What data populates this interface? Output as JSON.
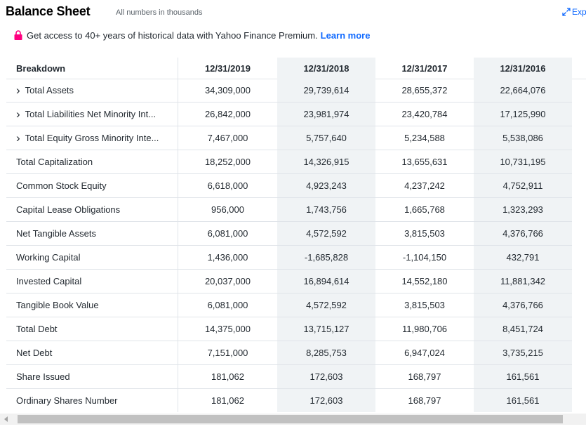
{
  "header": {
    "title": "Balance Sheet",
    "subtitle": "All numbers in thousands",
    "expand_label": "Exp"
  },
  "premium": {
    "text": "Get access to 40+ years of historical data with Yahoo Finance Premium.",
    "link_label": "Learn more"
  },
  "table": {
    "columns": [
      "Breakdown",
      "12/31/2019",
      "12/31/2018",
      "12/31/2017",
      "12/31/2016"
    ],
    "rows": [
      {
        "label": "Total Assets",
        "expandable": true,
        "values": [
          "34,309,000",
          "29,739,614",
          "28,655,372",
          "22,664,076"
        ]
      },
      {
        "label": "Total Liabilities Net Minority Int...",
        "expandable": true,
        "values": [
          "26,842,000",
          "23,981,974",
          "23,420,784",
          "17,125,990"
        ]
      },
      {
        "label": "Total Equity Gross Minority Inte...",
        "expandable": true,
        "values": [
          "7,467,000",
          "5,757,640",
          "5,234,588",
          "5,538,086"
        ]
      },
      {
        "label": "Total Capitalization",
        "expandable": false,
        "values": [
          "18,252,000",
          "14,326,915",
          "13,655,631",
          "10,731,195"
        ]
      },
      {
        "label": "Common Stock Equity",
        "expandable": false,
        "values": [
          "6,618,000",
          "4,923,243",
          "4,237,242",
          "4,752,911"
        ]
      },
      {
        "label": "Capital Lease Obligations",
        "expandable": false,
        "values": [
          "956,000",
          "1,743,756",
          "1,665,768",
          "1,323,293"
        ]
      },
      {
        "label": "Net Tangible Assets",
        "expandable": false,
        "values": [
          "6,081,000",
          "4,572,592",
          "3,815,503",
          "4,376,766"
        ]
      },
      {
        "label": "Working Capital",
        "expandable": false,
        "values": [
          "1,436,000",
          "-1,685,828",
          "-1,104,150",
          "432,791"
        ]
      },
      {
        "label": "Invested Capital",
        "expandable": false,
        "values": [
          "20,037,000",
          "16,894,614",
          "14,552,180",
          "11,881,342"
        ]
      },
      {
        "label": "Tangible Book Value",
        "expandable": false,
        "values": [
          "6,081,000",
          "4,572,592",
          "3,815,503",
          "4,376,766"
        ]
      },
      {
        "label": "Total Debt",
        "expandable": false,
        "values": [
          "14,375,000",
          "13,715,127",
          "11,980,706",
          "8,451,724"
        ]
      },
      {
        "label": "Net Debt",
        "expandable": false,
        "values": [
          "7,151,000",
          "8,285,753",
          "6,947,024",
          "3,735,215"
        ]
      },
      {
        "label": "Share Issued",
        "expandable": false,
        "values": [
          "181,062",
          "172,603",
          "168,797",
          "161,561"
        ]
      },
      {
        "label": "Ordinary Shares Number",
        "expandable": false,
        "values": [
          "181,062",
          "172,603",
          "168,797",
          "161,561"
        ]
      }
    ]
  },
  "colors": {
    "link": "#0f69ff",
    "lock": "#ff0080",
    "shaded_column": "#f0f3f5",
    "border": "#e0e4e9"
  },
  "icons": [
    "expand-icon",
    "lock-icon",
    "chevron-right-icon",
    "scroll-left-arrow-icon"
  ]
}
